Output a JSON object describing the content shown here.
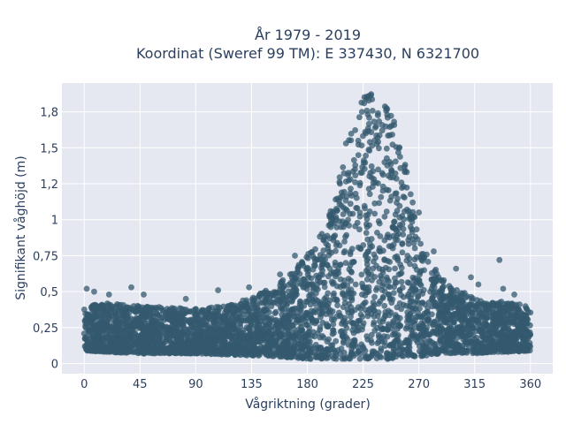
{
  "chart_data": {
    "type": "scatter",
    "title_line1": "År 1979 - 2019",
    "title_line2": "Koordinat (Sweref 99 TM): E 337430, N 6321700",
    "xlabel": "Vågriktning (grader)",
    "ylabel": "Signifikant våghöjd (m)",
    "xlim": [
      -18,
      378
    ],
    "ylim": [
      -0.07,
      1.95
    ],
    "x_ticks": [
      0,
      45,
      90,
      135,
      180,
      225,
      270,
      315,
      360
    ],
    "x_tick_labels": [
      "0",
      "45",
      "90",
      "135",
      "180",
      "225",
      "270",
      "315",
      "360"
    ],
    "y_ticks": [
      0,
      0.25,
      0.5,
      0.75,
      1,
      1.25,
      1.5,
      1.75
    ],
    "y_tick_labels": [
      "0",
      "0,25",
      "0,5",
      "0,75",
      "1",
      "1,2",
      "1,5",
      "1,8"
    ],
    "grid": true,
    "marker_color": "#34596f",
    "plot_bg": "#e5e8f0",
    "envelope": {
      "x": [
        0,
        20,
        45,
        90,
        120,
        150,
        170,
        185,
        195,
        205,
        210,
        215,
        220,
        225,
        230,
        235,
        240,
        245,
        250,
        255,
        260,
        265,
        270,
        280,
        290,
        300,
        315,
        330,
        345,
        360
      ],
      "y_min": [
        0.09,
        0.08,
        0.07,
        0.07,
        0.06,
        0.05,
        0.04,
        0.03,
        0.03,
        0.03,
        0.03,
        0.03,
        0.03,
        0.03,
        0.03,
        0.03,
        0.03,
        0.03,
        0.04,
        0.04,
        0.04,
        0.05,
        0.05,
        0.06,
        0.07,
        0.07,
        0.07,
        0.08,
        0.08,
        0.09
      ],
      "y_max": [
        0.4,
        0.42,
        0.4,
        0.38,
        0.42,
        0.52,
        0.65,
        0.82,
        1.0,
        1.25,
        1.5,
        1.68,
        1.8,
        1.9,
        1.88,
        1.86,
        1.84,
        1.8,
        1.7,
        1.55,
        1.35,
        1.1,
        0.88,
        0.7,
        0.58,
        0.52,
        0.46,
        0.44,
        0.42,
        0.4
      ]
    },
    "outliers": [
      {
        "x": 2,
        "y": 0.52
      },
      {
        "x": 8,
        "y": 0.5
      },
      {
        "x": 20,
        "y": 0.48
      },
      {
        "x": 38,
        "y": 0.53
      },
      {
        "x": 48,
        "y": 0.48
      },
      {
        "x": 82,
        "y": 0.45
      },
      {
        "x": 108,
        "y": 0.51
      },
      {
        "x": 133,
        "y": 0.53
      },
      {
        "x": 158,
        "y": 0.62
      },
      {
        "x": 170,
        "y": 0.75
      },
      {
        "x": 176,
        "y": 0.7
      },
      {
        "x": 198,
        "y": 1.02
      },
      {
        "x": 265,
        "y": 1.12
      },
      {
        "x": 270,
        "y": 1.05
      },
      {
        "x": 282,
        "y": 0.78
      },
      {
        "x": 300,
        "y": 0.66
      },
      {
        "x": 312,
        "y": 0.6
      },
      {
        "x": 318,
        "y": 0.55
      },
      {
        "x": 335,
        "y": 0.72
      },
      {
        "x": 338,
        "y": 0.52
      },
      {
        "x": 347,
        "y": 0.48
      }
    ]
  }
}
